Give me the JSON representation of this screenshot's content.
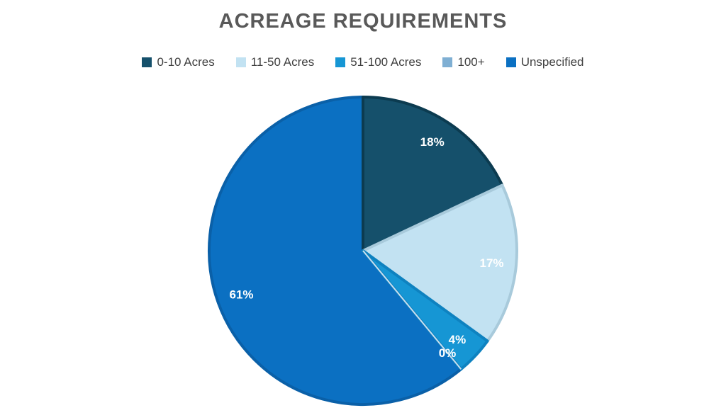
{
  "page": {
    "background_color": "#ffffff"
  },
  "chart_data": {
    "type": "pie",
    "title": "ACREAGE REQUIREMENTS",
    "legend_position": "top",
    "start_angle_deg": 0,
    "direction": "clockwise",
    "slices": [
      {
        "label": "0-10 Acres",
        "value_pct": 18,
        "data_label": "18%",
        "fill": "#15506B",
        "border": "#0C3B50"
      },
      {
        "label": "11-50 Acres",
        "value_pct": 17,
        "data_label": "17%",
        "fill": "#C2E2F2",
        "border": "#A8CADB"
      },
      {
        "label": "51-100 Acres",
        "value_pct": 4,
        "data_label": "4%",
        "fill": "#1696D4",
        "border": "#0E82C0"
      },
      {
        "label": "100+",
        "value_pct": 0,
        "data_label": "0%",
        "fill": "#7FAFD3",
        "border": "#C9DEEF"
      },
      {
        "label": "Unspecified",
        "value_pct": 61,
        "data_label": "61%",
        "fill": "#0B70C2",
        "border": "#0A60A8"
      }
    ],
    "style": {
      "title_color": "#595959",
      "legend_text_color": "#404040",
      "data_label_color": "#FFFFFF"
    }
  }
}
